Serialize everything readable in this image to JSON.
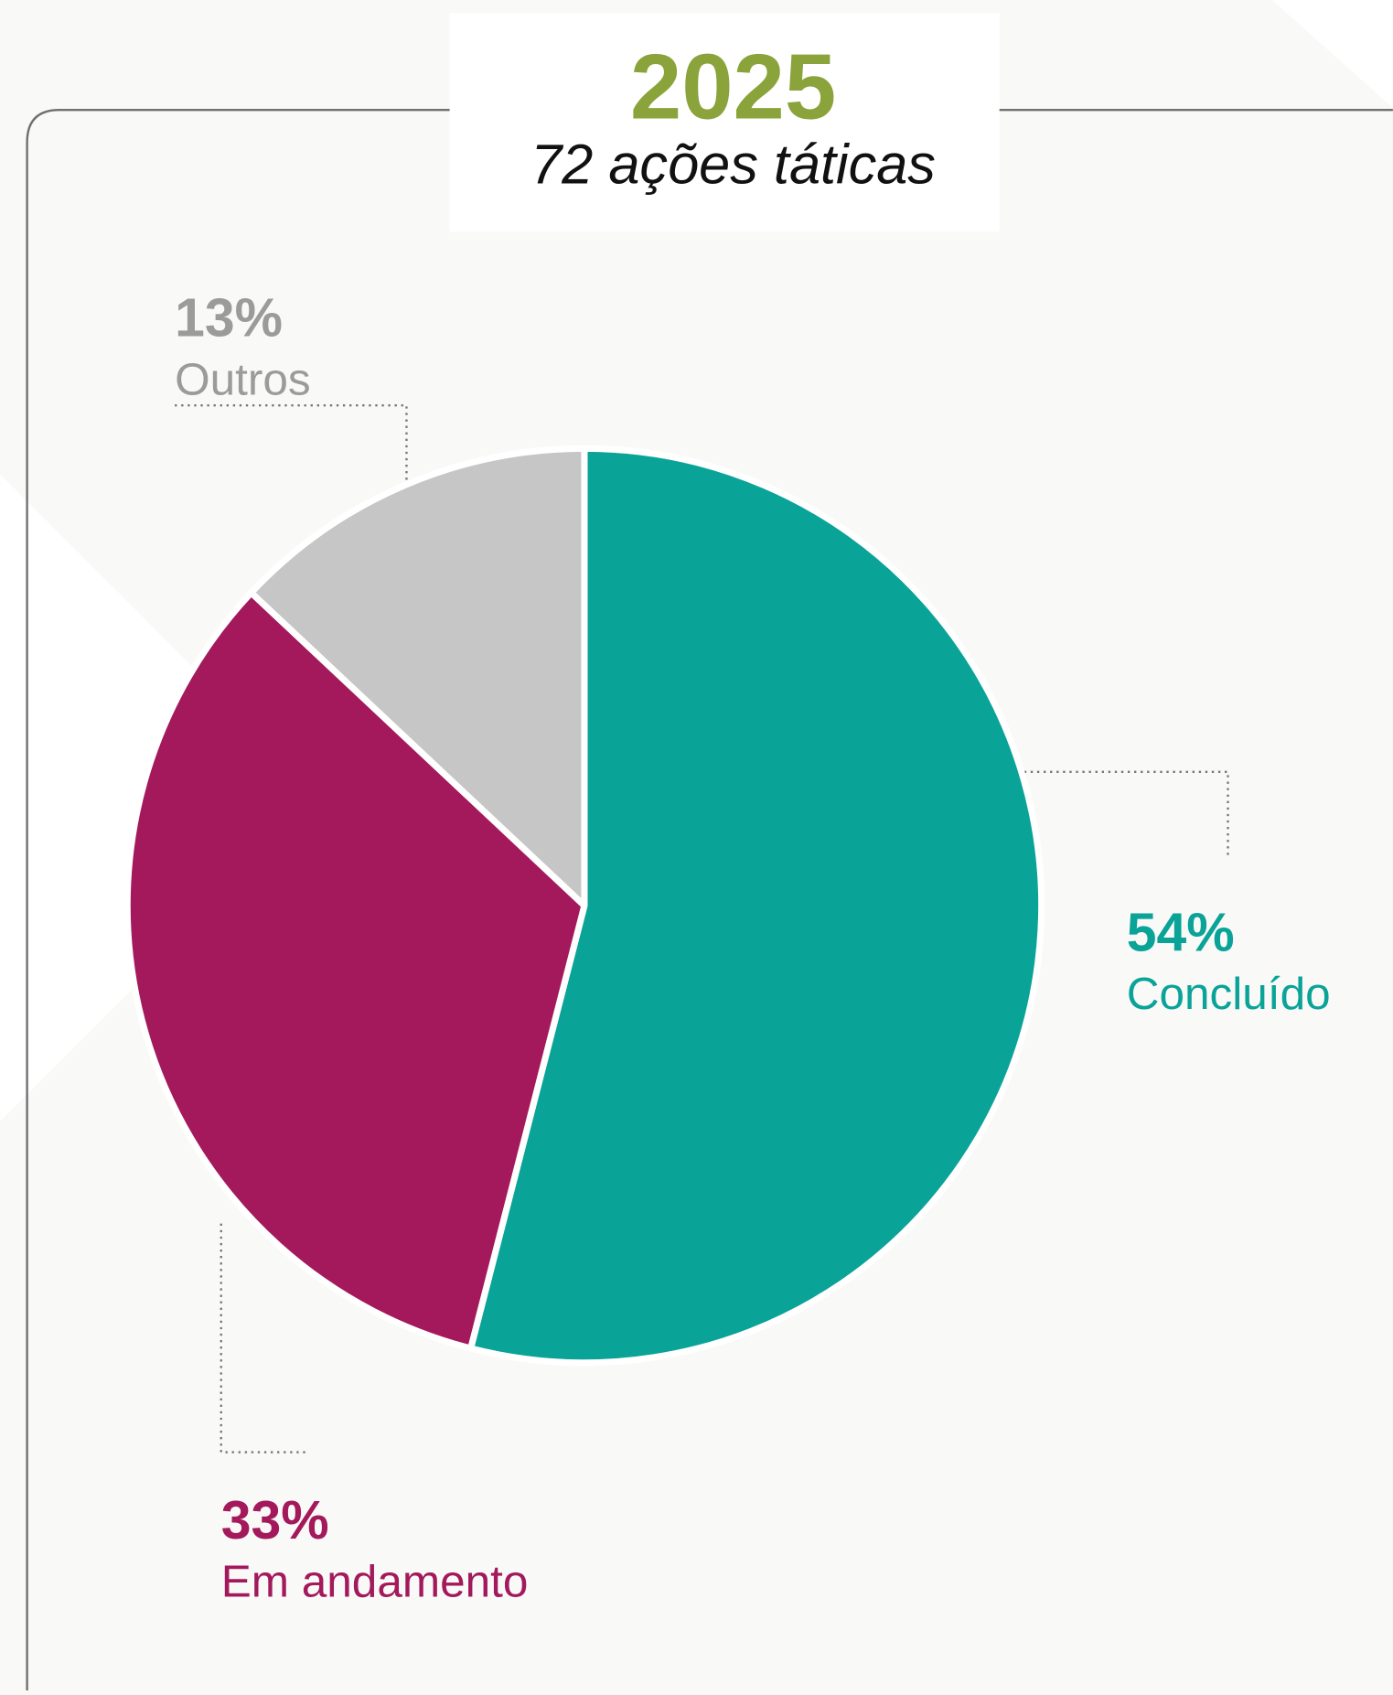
{
  "chart_data": {
    "type": "pie",
    "title": "2025",
    "subtitle": "72 ações táticas",
    "categories": [
      "Concluído",
      "Em andamento",
      "Outros"
    ],
    "values": [
      54,
      33,
      13
    ],
    "value_labels": [
      "54%",
      "33%",
      "13%"
    ],
    "colors": [
      "#0aa398",
      "#a3195b",
      "#c6c6c6"
    ]
  }
}
